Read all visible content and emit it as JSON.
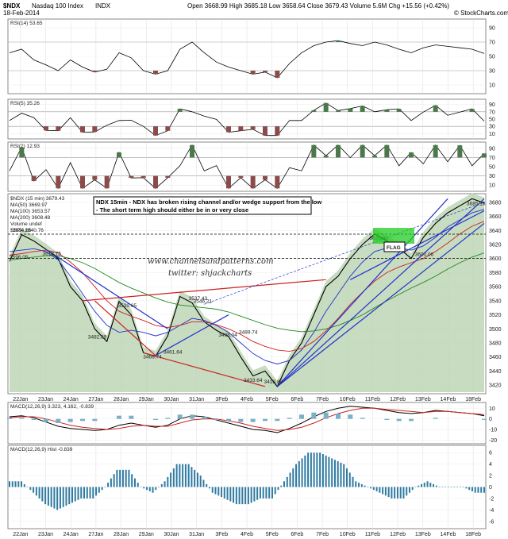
{
  "header": {
    "symbol": "$NDX",
    "name": "Nasdaq 100 Index",
    "exchange": "INDX",
    "date": "18-Feb-2014",
    "quote": "Open 3668.99  High 3685.18  Low 3658.64  Close 3679.43  Volume 5.6M  Chg +15.56 (+0.42%)",
    "brand": "© StockCharts.com"
  },
  "panels": {
    "rsi14": {
      "label": "RSI(14) 53.65",
      "ticks": [
        "90",
        "70",
        "50",
        "30",
        "10"
      ]
    },
    "rsi5": {
      "label": "RSI(5) 35.26",
      "ticks": [
        "90",
        "70",
        "50",
        "30",
        "10"
      ]
    },
    "rsi2": {
      "label": "RSI(2) 12.93",
      "ticks": [
        "90",
        "70",
        "50",
        "30",
        "10"
      ]
    },
    "macd": {
      "label": "MACD(12,26,9) 3.323, 4.162, -0.839",
      "value": "3.323",
      "signal": "4.162",
      "hist": "-0.839",
      "ticks": [
        "10",
        "0",
        "-10",
        "-20"
      ]
    },
    "hist": {
      "label": "MACD(12,26,9) Hist -0.839",
      "ticks": [
        "6",
        "4",
        "2",
        "0",
        "-2",
        "-4",
        "-6"
      ]
    }
  },
  "legend": [
    {
      "text": "$NDX (15 min) 3679.43",
      "color": "#000000"
    },
    {
      "text": "MA(50) 3669.97",
      "color": "#2233cc"
    },
    {
      "text": "MA(100) 3653.57",
      "color": "#cc2222"
    },
    {
      "text": "MA(200) 3608.48",
      "color": "#228822"
    },
    {
      "text": "Volume undef",
      "color": "#888888"
    },
    {
      "text": "$SPX 1840.76",
      "color": "#bbbbbb"
    }
  ],
  "annotations": {
    "note_line1": "NDX 15min - NDX has broken rising channel and/or wedge support from the low",
    "note_line2": "- The short term high should either be in or very close",
    "watermark1": "www.channelsandpatterns.com",
    "watermark2": "twitter: shjackcharts",
    "flag": "FLAG"
  },
  "price_labels": [
    {
      "text": "3634.65",
      "date": "22Jan",
      "v": 3634.65
    },
    {
      "text": "3613.75",
      "date": "23Jan",
      "v": 3613.75
    },
    {
      "text": "3596.05",
      "date": "21Jan",
      "v": 3596.05
    },
    {
      "text": "3539.65",
      "date": "28Jan",
      "v": 3539.65
    },
    {
      "text": "3482.89",
      "date": "27Jan",
      "v": 3482.89
    },
    {
      "text": "3466.74",
      "date": "29Jan",
      "v": 3466.74
    },
    {
      "text": "3461.64",
      "date": "30Jan",
      "v": 3461.64
    },
    {
      "text": "3546.21",
      "date": "31Jan",
      "v": 3546.21
    },
    {
      "text": "3537.43",
      "date": "31Jan",
      "v": 3537.43
    },
    {
      "text": "3498.04",
      "date": "3Feb",
      "v": 3498.04
    },
    {
      "text": "3489.74",
      "date": "4Feb",
      "v": 3489.74
    },
    {
      "text": "3433.64",
      "date": "4Feb",
      "v": 3433.64
    },
    {
      "text": "3418.88",
      "date": "5Feb",
      "v": 3418.88
    },
    {
      "text": "3635.92",
      "date": "11Feb",
      "v": 3635.92
    },
    {
      "text": "3600.06",
      "date": "13Feb",
      "v": 3600.06
    },
    {
      "text": "3685.18",
      "date": "18Feb",
      "v": 3685.18
    }
  ],
  "chart_data": {
    "type": "line",
    "title": "$NDX Nasdaq 100 Index INDX (15 min)",
    "x_labels": [
      "22Jan",
      "23Jan",
      "24Jan",
      "27Jan",
      "28Jan",
      "29Jan",
      "30Jan",
      "31Jan",
      "3Feb",
      "4Feb",
      "5Feb",
      "6Feb",
      "7Feb",
      "10Feb",
      "11Feb",
      "12Feb",
      "13Feb",
      "14Feb",
      "18Feb"
    ],
    "y_ticks": [
      3420,
      3440,
      3460,
      3480,
      3500,
      3520,
      3540,
      3560,
      3580,
      3600,
      3620,
      3640,
      3660,
      3680
    ],
    "ylim": [
      3410,
      3690
    ],
    "series": [
      {
        "name": "$NDX (15 min)",
        "values": [
          3596,
          3634,
          3625,
          3613,
          3600,
          3560,
          3540,
          3500,
          3482,
          3539,
          3520,
          3466,
          3461,
          3490,
          3546,
          3537,
          3510,
          3498,
          3489,
          3460,
          3433,
          3440,
          3418,
          3455,
          3480,
          3520,
          3560,
          3575,
          3600,
          3620,
          3635,
          3625,
          3615,
          3600,
          3630,
          3650,
          3665,
          3675,
          3685,
          3679
        ]
      },
      {
        "name": "MA(50)",
        "values": [
          3610,
          3612,
          3614,
          3610,
          3598,
          3575,
          3550,
          3525,
          3505,
          3495,
          3498,
          3495,
          3490,
          3495,
          3505,
          3515,
          3512,
          3505,
          3495,
          3480,
          3465,
          3455,
          3450,
          3455,
          3470,
          3495,
          3525,
          3550,
          3575,
          3595,
          3610,
          3615,
          3615,
          3612,
          3618,
          3630,
          3645,
          3655,
          3665,
          3670
        ]
      },
      {
        "name": "MA(100)",
        "values": [
          3605,
          3607,
          3610,
          3612,
          3608,
          3595,
          3580,
          3560,
          3540,
          3525,
          3518,
          3512,
          3505,
          3502,
          3505,
          3510,
          3510,
          3506,
          3500,
          3492,
          3482,
          3475,
          3470,
          3468,
          3472,
          3482,
          3497,
          3515,
          3535,
          3552,
          3568,
          3580,
          3588,
          3594,
          3600,
          3610,
          3622,
          3635,
          3646,
          3653
        ]
      },
      {
        "name": "MA(200)",
        "values": [
          3598,
          3600,
          3602,
          3604,
          3604,
          3600,
          3594,
          3586,
          3576,
          3566,
          3558,
          3551,
          3544,
          3538,
          3534,
          3532,
          3530,
          3528,
          3524,
          3518,
          3512,
          3506,
          3501,
          3498,
          3496,
          3497,
          3500,
          3505,
          3512,
          3520,
          3530,
          3540,
          3549,
          3558,
          3566,
          3575,
          3585,
          3594,
          3602,
          3608
        ]
      }
    ],
    "rsi14": [
      55,
      60,
      45,
      38,
      30,
      45,
      35,
      28,
      32,
      55,
      48,
      30,
      25,
      30,
      60,
      70,
      55,
      42,
      35,
      30,
      25,
      28,
      20,
      40,
      55,
      65,
      70,
      72,
      68,
      65,
      70,
      66,
      60,
      55,
      62,
      66,
      64,
      62,
      60,
      54
    ],
    "macd": [
      2,
      3,
      1,
      -3,
      -7,
      -9,
      -10,
      -11,
      -10,
      -6,
      -4,
      -6,
      -8,
      -6,
      0,
      3,
      2,
      -1,
      -4,
      -7,
      -10,
      -11,
      -13,
      -9,
      -4,
      2,
      7,
      10,
      12,
      11,
      10,
      8,
      6,
      5,
      6,
      8,
      7,
      6,
      5,
      3
    ],
    "macd_signal": [
      1,
      2,
      2,
      0,
      -3,
      -6,
      -8,
      -9,
      -10,
      -9,
      -7,
      -6,
      -7,
      -7,
      -4,
      -1,
      0,
      0,
      -2,
      -4,
      -7,
      -9,
      -11,
      -10,
      -8,
      -4,
      1,
      5,
      8,
      10,
      10,
      9,
      8,
      7,
      6,
      7,
      7,
      6,
      5,
      4
    ],
    "histogram": [
      1,
      1,
      -1,
      -3,
      -4,
      -3,
      -2,
      -2,
      0,
      3,
      3,
      0,
      -1,
      1,
      4,
      4,
      2,
      -1,
      -2,
      -3,
      -3,
      -2,
      -2,
      1,
      4,
      6,
      6,
      5,
      4,
      1,
      0,
      -1,
      -2,
      -2,
      0,
      1,
      0,
      0,
      0,
      -1
    ]
  }
}
